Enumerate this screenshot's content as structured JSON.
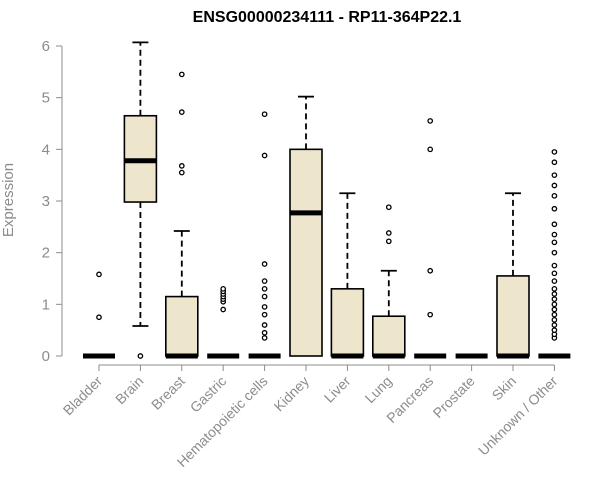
{
  "chart_data": {
    "type": "box",
    "title": "ENSG00000234111 - RP11-364P22.1",
    "xlabel": "",
    "ylabel": "Expression",
    "ylim": [
      0,
      6
    ],
    "yticks": [
      0,
      1,
      2,
      3,
      4,
      5,
      6
    ],
    "categories": [
      "Bladder",
      "Brain",
      "Breast",
      "Gastric",
      "Hematopoietic cells",
      "Kidney",
      "Liver",
      "Lung",
      "Pancreas",
      "Prostate",
      "Skin",
      "Unknown / Other"
    ],
    "colors": {
      "box_fill": "#ede6cd",
      "stroke": "#000000",
      "axis": "#8c8c8c"
    },
    "boxes": [
      {
        "category": "Bladder",
        "q1": 0,
        "median": 0,
        "q3": 0,
        "whisker_low": 0,
        "whisker_high": 0,
        "outliers": [
          0.75,
          1.58
        ]
      },
      {
        "category": "Brain",
        "q1": 2.98,
        "median": 3.78,
        "q3": 4.65,
        "whisker_low": 0.58,
        "whisker_high": 6.07,
        "outliers": [
          0
        ]
      },
      {
        "category": "Breast",
        "q1": 0,
        "median": 0,
        "q3": 1.15,
        "whisker_low": 0,
        "whisker_high": 2.42,
        "outliers": [
          3.55,
          3.68,
          4.72,
          5.45
        ]
      },
      {
        "category": "Gastric",
        "q1": 0,
        "median": 0,
        "q3": 0,
        "whisker_low": 0,
        "whisker_high": 0,
        "outliers": [
          0.9,
          1.05,
          1.1,
          1.15,
          1.2,
          1.25,
          1.3
        ]
      },
      {
        "category": "Hematopoietic cells",
        "q1": 0,
        "median": 0,
        "q3": 0,
        "whisker_low": 0,
        "whisker_high": 0,
        "outliers": [
          0.35,
          0.45,
          0.6,
          0.8,
          0.95,
          1.15,
          1.3,
          1.45,
          1.78,
          3.88,
          4.68
        ]
      },
      {
        "category": "Kidney",
        "q1": 0,
        "median": 2.77,
        "q3": 4.0,
        "whisker_low": 0,
        "whisker_high": 5.02,
        "outliers": []
      },
      {
        "category": "Liver",
        "q1": 0,
        "median": 0,
        "q3": 1.3,
        "whisker_low": 0,
        "whisker_high": 3.15,
        "outliers": []
      },
      {
        "category": "Lung",
        "q1": 0,
        "median": 0,
        "q3": 0.77,
        "whisker_low": 0,
        "whisker_high": 1.65,
        "outliers": [
          2.22,
          2.38,
          2.88
        ]
      },
      {
        "category": "Pancreas",
        "q1": 0,
        "median": 0,
        "q3": 0,
        "whisker_low": 0,
        "whisker_high": 0,
        "outliers": [
          0.8,
          1.65,
          4.0,
          4.55
        ]
      },
      {
        "category": "Prostate",
        "q1": 0,
        "median": 0,
        "q3": 0,
        "whisker_low": 0,
        "whisker_high": 0,
        "outliers": []
      },
      {
        "category": "Skin",
        "q1": 0,
        "median": 0,
        "q3": 1.55,
        "whisker_low": 0,
        "whisker_high": 3.15,
        "outliers": []
      },
      {
        "category": "Unknown / Other",
        "q1": 0,
        "median": 0,
        "q3": 0,
        "whisker_low": 0,
        "whisker_high": 0,
        "outliers": [
          0.35,
          0.42,
          0.5,
          0.6,
          0.7,
          0.8,
          0.9,
          1.0,
          1.1,
          1.2,
          1.3,
          1.45,
          1.6,
          1.75,
          2.0,
          2.2,
          2.35,
          2.55,
          2.85,
          3.1,
          3.3,
          3.5,
          3.75,
          3.95
        ]
      }
    ]
  }
}
